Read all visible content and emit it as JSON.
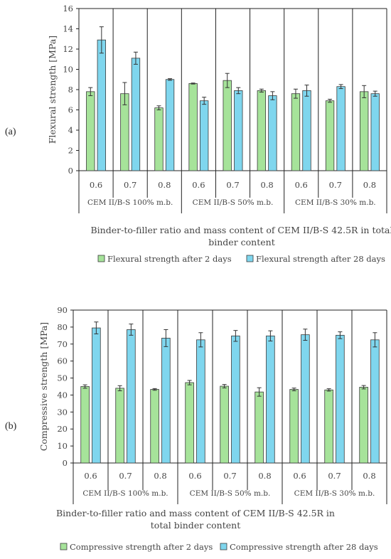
{
  "panel_labels": [
    "(a)",
    "(b)"
  ],
  "colors": {
    "series_2d": "#a6e39a",
    "series_28d": "#7fd6ee",
    "edge": "#3a3a3a",
    "axis": "#222222"
  },
  "chart_data": [
    {
      "type": "bar",
      "panel": "(a)",
      "ylabel": "Flexural strength [MPa]",
      "xlabel": "Binder-to-filler ratio and mass content of CEM II/B-S 42.5R in total binder content",
      "xlabel_lines": [
        "Binder-to-filler ratio and mass content of CEM II/B-S 42.5R in total",
        "binder content"
      ],
      "ylim": [
        0,
        16
      ],
      "yticks": [
        0,
        2,
        4,
        6,
        8,
        10,
        12,
        14,
        16
      ],
      "groups": [
        "CEM II/B-S 100% m.b.",
        "CEM II/B-S 50% m.b.",
        "CEM II/B-S 30% m.b."
      ],
      "categories": [
        "0.6",
        "0.7",
        "0.8",
        "0.6",
        "0.7",
        "0.8",
        "0.6",
        "0.7",
        "0.8"
      ],
      "series": [
        {
          "name": "Flexural strength after 2 days",
          "values": [
            7.8,
            7.6,
            6.2,
            8.6,
            8.9,
            7.9,
            7.6,
            6.9,
            7.8
          ],
          "errors": [
            0.4,
            1.1,
            0.2,
            0.05,
            0.7,
            0.15,
            0.45,
            0.15,
            0.6
          ]
        },
        {
          "name": "Flexural strength after 28 days",
          "values": [
            12.9,
            11.1,
            9.0,
            6.9,
            7.9,
            7.4,
            7.9,
            8.3,
            7.6
          ],
          "errors": [
            1.3,
            0.6,
            0.08,
            0.35,
            0.3,
            0.4,
            0.55,
            0.2,
            0.25
          ]
        }
      ],
      "legend": "bottom",
      "grid": false
    },
    {
      "type": "bar",
      "panel": "(b)",
      "ylabel": "Compressive strength [MPa]",
      "xlabel": "Binder-to-filler ratio and mass content of CEM II/B-S 42.5R in total binder content",
      "xlabel_lines": [
        "Binder-to-filler ratio and mass content of CEM II/B-S 42.5R in",
        "total binder content"
      ],
      "ylim": [
        0,
        90
      ],
      "yticks": [
        0,
        10,
        20,
        30,
        40,
        50,
        60,
        70,
        80,
        90
      ],
      "groups": [
        "CEM II/B-S 100% m.b.",
        "CEM II/B-S 50% m.b.",
        "CEM II/B-S 30% m.b."
      ],
      "categories": [
        "0.6",
        "0.7",
        "0.8",
        "0.6",
        "0.7",
        "0.8",
        "0.6",
        "0.7",
        "0.8"
      ],
      "series": [
        {
          "name": "Compressive strength after 2 days",
          "values": [
            45.0,
            44.0,
            43.3,
            47.3,
            45.2,
            41.8,
            43.3,
            43.0,
            44.6
          ],
          "errors": [
            1.0,
            1.5,
            0.5,
            1.3,
            1.0,
            2.5,
            0.8,
            0.7,
            1.0
          ]
        },
        {
          "name": "Compressive strength after 28 days",
          "values": [
            79.5,
            78.5,
            73.5,
            72.5,
            74.8,
            74.8,
            75.5,
            75.2,
            72.5
          ],
          "errors": [
            3.5,
            3.3,
            5.0,
            4.2,
            3.2,
            3.0,
            3.3,
            2.0,
            4.2
          ]
        }
      ],
      "legend": "bottom",
      "grid": false
    }
  ]
}
